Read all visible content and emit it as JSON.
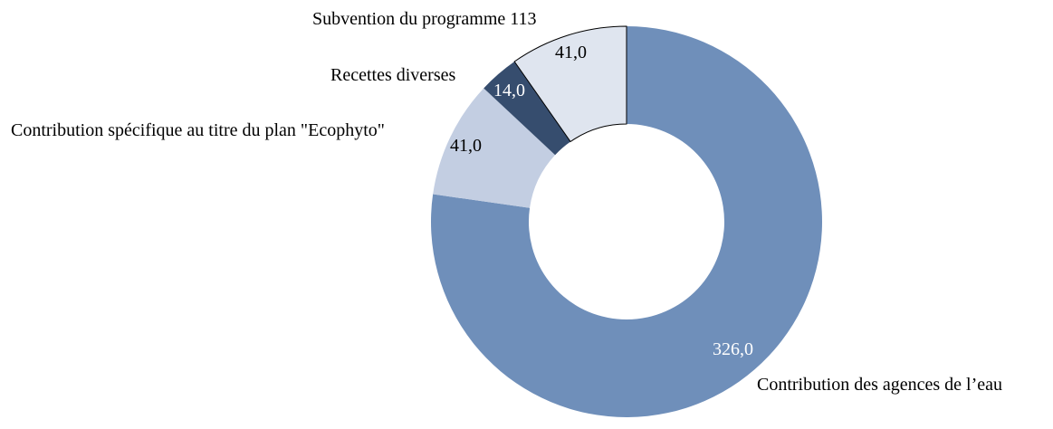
{
  "chart_data": {
    "type": "pie",
    "donut": true,
    "title": "",
    "categories": [
      "Contribution des agences de l’eau",
      "Contribution spécifique au titre du plan \"Ecophyto\"",
      "Recettes diverses",
      "Subvention du programme 113"
    ],
    "values": [
      326,
      41,
      14,
      41
    ],
    "value_labels": [
      "326,0",
      "41,0",
      "14,0",
      "41,0"
    ],
    "colors": [
      "#6f8fba",
      "#c3cee2",
      "#364d6e",
      "#dfe5ef"
    ],
    "label_colors": [
      "#ffffff",
      "#000000",
      "#ffffff",
      "#000000"
    ],
    "direction": "counterclockwise-from-top",
    "legend": "none"
  }
}
